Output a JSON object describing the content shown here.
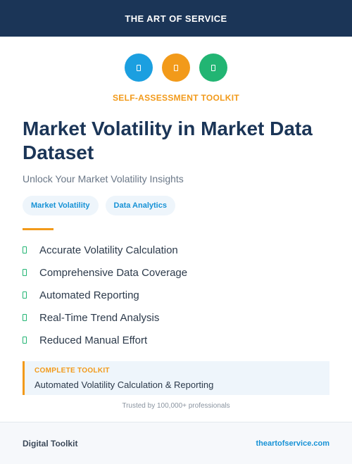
{
  "header": {
    "brand": "THE ART OF SERVICE"
  },
  "icons": [
    {
      "name": "document-icon",
      "color": "#1b9fe0"
    },
    {
      "name": "document-icon",
      "color": "#f29a1a"
    },
    {
      "name": "document-icon",
      "color": "#22b573"
    }
  ],
  "kicker": "SELF-ASSESSMENT TOOLKIT",
  "title": "Market Volatility in Market Data Dataset",
  "subtitle": "Unlock Your Market Volatility Insights",
  "tags": [
    "Market Volatility",
    "Data Analytics"
  ],
  "features": [
    "Accurate Volatility Calculation",
    "Comprehensive Data Coverage",
    "Automated Reporting",
    "Real-Time Trend Analysis",
    "Reduced Manual Effort"
  ],
  "callout": {
    "label": "COMPLETE TOOLKIT",
    "text": "Automated Volatility Calculation & Reporting"
  },
  "trusted": "Trusted by 100,000+ professionals",
  "footer": {
    "left": "Digital Toolkit",
    "right": "theartofservice.com"
  },
  "colors": {
    "navy": "#1b3557",
    "orange": "#f29a1a",
    "blue": "#1b9fe0",
    "green": "#22b573"
  }
}
